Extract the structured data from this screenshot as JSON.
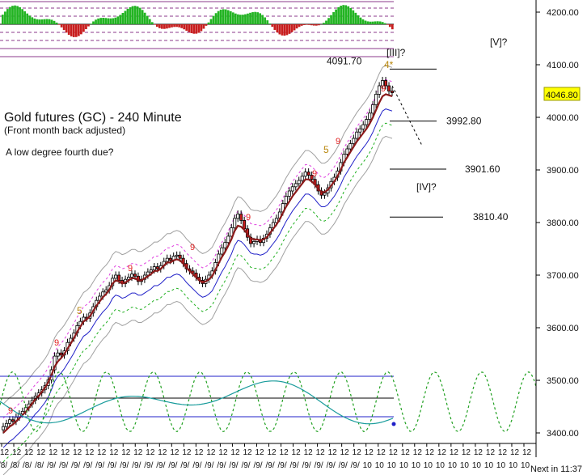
{
  "chart_data": {
    "type": "candlestick",
    "title": "Gold futures (GC) - 240 Minute",
    "subtitle": "(Front month back adjusted)",
    "comment": "A low degree fourth due?",
    "ylim": [
      3380,
      4220
    ],
    "yticks": [
      "4200.00",
      "4100.00",
      "4000.00",
      "3900.00",
      "3800.00",
      "3700.00",
      "3600.00",
      "3500.00",
      "3400.00"
    ],
    "ytick_values": [
      4200,
      4100,
      4000,
      3900,
      3800,
      3700,
      3600,
      3500,
      3400
    ],
    "last_price": "4046.80",
    "last_price_value": 4046.8,
    "levels": [
      {
        "label": "4091.70",
        "value": 4091.7
      },
      {
        "label": "3992.80",
        "value": 3992.8
      },
      {
        "label": "3901.60",
        "value": 3901.6
      },
      {
        "label": "3810.40",
        "value": 3810.4
      }
    ],
    "wave_labels": [
      "[III]?",
      "4*",
      "[V]?",
      "[IV]?",
      "5",
      "5"
    ],
    "count_labels": [
      "9",
      "9",
      "9",
      "9",
      "9",
      "9",
      "9",
      "9"
    ],
    "x_tick_labels": [
      "12/8/",
      "12/8/",
      "12/8/",
      "12/8/",
      "12/9/",
      "12/9/",
      "12/9/",
      "12/9/",
      "12/9/",
      "12/9/",
      "12/9/",
      "12/9/",
      "12/9/",
      "12/9/",
      "12/9/",
      "12/9/",
      "12/9/",
      "12/9/",
      "12/9/",
      "12/9/",
      "12/9/",
      "12/9/",
      "12/9/",
      "12/9/",
      "12/9/",
      "12/9/",
      "12/9/",
      "12/9/",
      "12/9/",
      "12/9/",
      "1210",
      "1210",
      "1210",
      "1210",
      "1210",
      "1210",
      "1210",
      "1210",
      "1210",
      "1210",
      "1210",
      "1210",
      "1210",
      "1210"
    ],
    "footer": "Next in 11:37",
    "close_series": [
      3412,
      3418,
      3425,
      3422,
      3430,
      3436,
      3441,
      3448,
      3455,
      3462,
      3470,
      3476,
      3482,
      3490,
      3501,
      3520,
      3546,
      3552,
      3548,
      3556,
      3572,
      3580,
      3590,
      3604,
      3612,
      3620,
      3618,
      3628,
      3640,
      3652,
      3660,
      3668,
      3672,
      3680,
      3694,
      3700,
      3690,
      3684,
      3692,
      3696,
      3702,
      3698,
      3688,
      3692,
      3700,
      3706,
      3710,
      3716,
      3712,
      3718,
      3726,
      3732,
      3728,
      3736,
      3738,
      3732,
      3722,
      3712,
      3708,
      3704,
      3696,
      3690,
      3684,
      3692,
      3700,
      3708,
      3724,
      3740,
      3752,
      3762,
      3774,
      3790,
      3808,
      3816,
      3804,
      3788,
      3772,
      3760,
      3764,
      3768,
      3762,
      3770,
      3778,
      3790,
      3800,
      3808,
      3820,
      3836,
      3850,
      3860,
      3868,
      3874,
      3880,
      3888,
      3896,
      3890,
      3882,
      3872,
      3860,
      3852,
      3856,
      3866,
      3878,
      3886,
      3898,
      3914,
      3930,
      3940,
      3950,
      3960,
      3972,
      3978,
      3986,
      3996,
      4008,
      4024,
      4044,
      4060,
      4070,
      4060,
      4050,
      4046.8
    ],
    "ma_series": [
      3400,
      3406,
      3412,
      3416,
      3422,
      3428,
      3434,
      3440,
      3448,
      3456,
      3464,
      3470,
      3478,
      3486,
      3496,
      3510,
      3526,
      3536,
      3542,
      3550,
      3560,
      3570,
      3580,
      3592,
      3602,
      3612,
      3616,
      3622,
      3632,
      3642,
      3650,
      3658,
      3664,
      3672,
      3684,
      3690,
      3688,
      3684,
      3686,
      3690,
      3694,
      3694,
      3690,
      3690,
      3694,
      3698,
      3702,
      3708,
      3708,
      3712,
      3718,
      3724,
      3724,
      3728,
      3730,
      3728,
      3722,
      3714,
      3708,
      3702,
      3696,
      3690,
      3686,
      3688,
      3692,
      3698,
      3710,
      3722,
      3734,
      3744,
      3756,
      3768,
      3784,
      3794,
      3792,
      3786,
      3778,
      3770,
      3768,
      3768,
      3766,
      3768,
      3772,
      3780,
      3788,
      3796,
      3806,
      3818,
      3830,
      3840,
      3850,
      3858,
      3866,
      3874,
      3882,
      3882,
      3878,
      3872,
      3864,
      3858,
      3858,
      3862,
      3870,
      3878,
      3888,
      3900,
      3914,
      3924,
      3934,
      3944,
      3954,
      3962,
      3970,
      3978,
      3988,
      4000,
      4014,
      4028,
      4040,
      4044,
      4042,
      4040
    ],
    "oscillator_panel": {
      "type": "area",
      "baseline_label": "zero",
      "upper_color": "#22b422",
      "lower_color": "#c81e1e"
    },
    "cycle_panel": {
      "type": "line",
      "projected": true
    },
    "colors": {
      "candle_up": "#ffffff",
      "candle_down": "#c81e1e",
      "moving_average": "#8b1a1a",
      "price_box": "#ffff00",
      "count_9": "#e02020",
      "wave_5": "#b8860b"
    }
  }
}
